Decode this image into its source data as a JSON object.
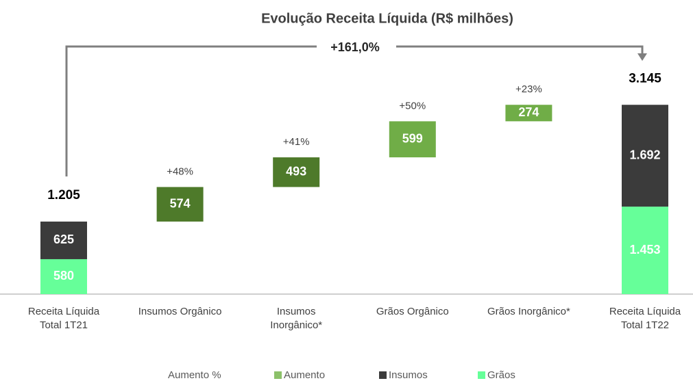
{
  "chart_data": {
    "type": "waterfall",
    "title": "Evolução Receita Líquida (R$ milhões)",
    "annotation": "+161,0%",
    "categories": [
      "Receita Líquida\nTotal 1T21",
      "Insumos Orgânico",
      "Insumos\nInorgânico*",
      "Grãos Orgânico",
      "Grãos Inorgânico*",
      "Receita Líquida\nTotal 1T22"
    ],
    "totals": [
      1205,
      null,
      null,
      null,
      null,
      3145
    ],
    "total_labels": [
      "1.205",
      null,
      null,
      null,
      null,
      "3.145"
    ],
    "series": [
      {
        "name": "Aumento %",
        "color": "#404040",
        "values": [
          null,
          48,
          41,
          50,
          23,
          null
        ],
        "value_labels": [
          null,
          "+48%",
          "+41%",
          "+50%",
          "+23%",
          null
        ]
      },
      {
        "name": "Aumento",
        "color": "#8cc16a",
        "colors": [
          null,
          "#4e7a2a",
          "#4e7a2a",
          "#70ad47",
          "#70ad47",
          null
        ],
        "values": [
          null,
          574,
          493,
          599,
          274,
          null
        ]
      },
      {
        "name": "Insumos",
        "color": "#3b3b3b",
        "values": [
          625,
          null,
          null,
          null,
          null,
          1692
        ],
        "value_labels": [
          "625",
          null,
          null,
          null,
          null,
          "1.692"
        ]
      },
      {
        "name": "Grãos",
        "color": "#66ff99",
        "values": [
          580,
          null,
          null,
          null,
          null,
          1453
        ],
        "value_labels": [
          "580",
          null,
          null,
          null,
          null,
          "1.453"
        ]
      }
    ]
  }
}
